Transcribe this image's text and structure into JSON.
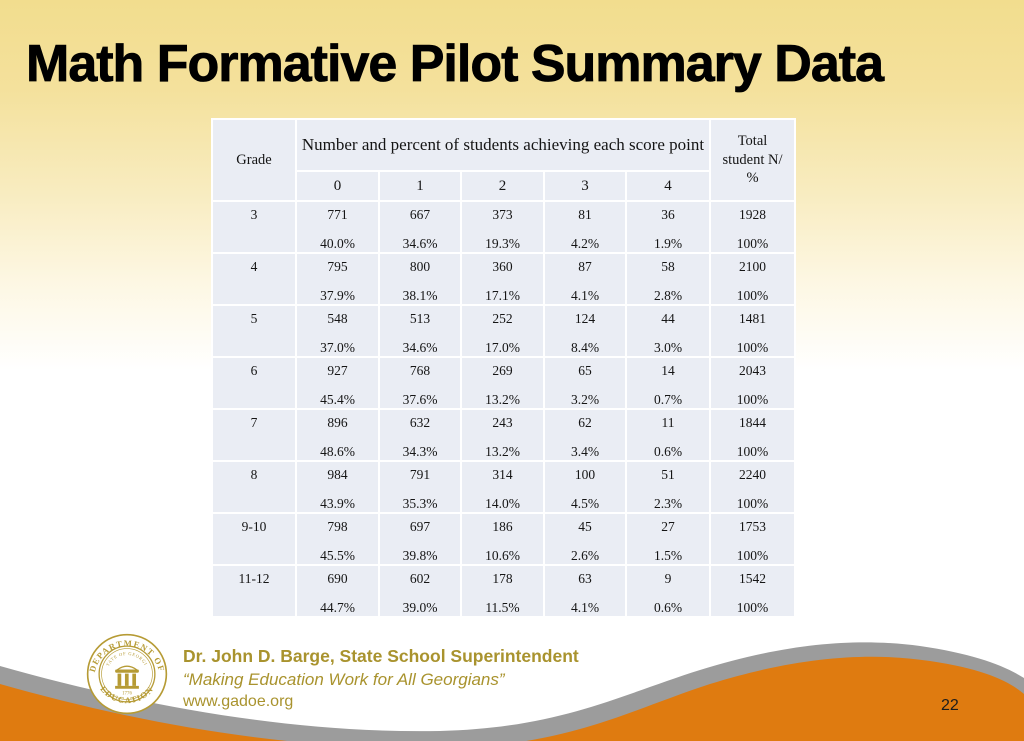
{
  "slide": {
    "title": "Math Formative Pilot Summary Data",
    "page_number": "22"
  },
  "table": {
    "corner_header": "Grade",
    "span_header": "Number and percent of students achieving each score point",
    "score_point_headers": [
      "0",
      "1",
      "2",
      "3",
      "4"
    ],
    "total_header": "Total student N/ %",
    "rows": [
      {
        "grade": "3",
        "counts": [
          "771",
          "667",
          "373",
          "81",
          "36"
        ],
        "percents": [
          "40.0%",
          "34.6%",
          "19.3%",
          "4.2%",
          "1.9%"
        ],
        "total": "1928",
        "total_percent": "100%"
      },
      {
        "grade": "4",
        "counts": [
          "795",
          "800",
          "360",
          "87",
          "58"
        ],
        "percents": [
          "37.9%",
          "38.1%",
          "17.1%",
          "4.1%",
          "2.8%"
        ],
        "total": "2100",
        "total_percent": "100%"
      },
      {
        "grade": "5",
        "counts": [
          "548",
          "513",
          "252",
          "124",
          "44"
        ],
        "percents": [
          "37.0%",
          "34.6%",
          "17.0%",
          "8.4%",
          "3.0%"
        ],
        "total": "1481",
        "total_percent": "100%"
      },
      {
        "grade": "6",
        "counts": [
          "927",
          "768",
          "269",
          "65",
          "14"
        ],
        "percents": [
          "45.4%",
          "37.6%",
          "13.2%",
          "3.2%",
          "0.7%"
        ],
        "total": "2043",
        "total_percent": "100%"
      },
      {
        "grade": "7",
        "counts": [
          "896",
          "632",
          "243",
          "62",
          "11"
        ],
        "percents": [
          "48.6%",
          "34.3%",
          "13.2%",
          "3.4%",
          "0.6%"
        ],
        "total": "1844",
        "total_percent": "100%"
      },
      {
        "grade": "8",
        "counts": [
          "984",
          "791",
          "314",
          "100",
          "51"
        ],
        "percents": [
          "43.9%",
          "35.3%",
          "14.0%",
          "4.5%",
          "2.3%"
        ],
        "total": "2240",
        "total_percent": "100%"
      },
      {
        "grade": "9-10",
        "counts": [
          "798",
          "697",
          "186",
          "45",
          "27"
        ],
        "percents": [
          "45.5%",
          "39.8%",
          "10.6%",
          "2.6%",
          "1.5%"
        ],
        "total": "1753",
        "total_percent": "100%"
      },
      {
        "grade": "11-12",
        "counts": [
          "690",
          "602",
          "178",
          "63",
          "9"
        ],
        "percents": [
          "44.7%",
          "39.0%",
          "11.5%",
          "4.1%",
          "0.6%"
        ],
        "total": "1542",
        "total_percent": "100%"
      }
    ]
  },
  "footer": {
    "superintendent_line": "Dr. John D. Barge, State School Superintendent",
    "motto": "“Making Education Work for All Georgians”",
    "website": "www.gadoe.org",
    "seal": {
      "ring_top": "DEPARTMENT OF",
      "ring_bottom": "EDUCATION",
      "inner_arc": "STATE OF GEORGIA",
      "year": "1776"
    }
  },
  "colors": {
    "top_gradient_yellow": "#f2dd8e",
    "table_cell_bg": "#eaedf4",
    "gold_text": "#a9932e",
    "wave_gray": "#9c9c9c",
    "wave_orange": "#df7b10",
    "title_color": "#000000"
  }
}
